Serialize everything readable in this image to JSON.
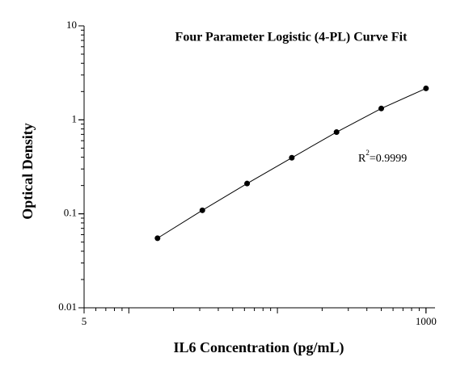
{
  "chart_data": {
    "type": "scatter",
    "title": "Four Parameter Logistic (4-PL) Curve Fit",
    "x_label": "IL6 Concentration (pg/mL)",
    "y_label": "Optical Density",
    "annotation": {
      "base": "R",
      "sup": "2",
      "rest": "=0.9999"
    },
    "x_scale": "log",
    "y_scale": "log",
    "xlim": [
      5,
      1150
    ],
    "ylim": [
      0.01,
      10
    ],
    "xticks": [
      5,
      1000
    ],
    "yticks": [
      0.01,
      0.1,
      1,
      10
    ],
    "series": [
      {
        "color": "#000000",
        "x": [
          15.6,
          31.25,
          62.5,
          125,
          250,
          500,
          1000
        ],
        "values": [
          0.055,
          0.109,
          0.21,
          0.395,
          0.74,
          1.32,
          2.16
        ]
      }
    ]
  }
}
